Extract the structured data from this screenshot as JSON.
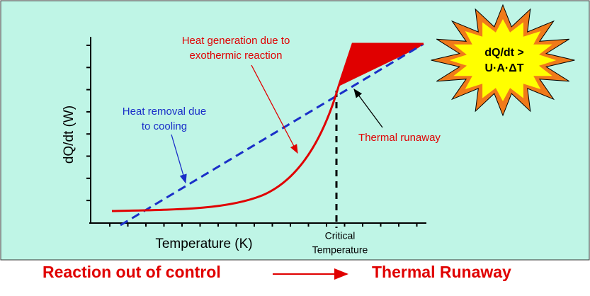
{
  "axes": {
    "y_label": "dQ/dt (W)",
    "x_label": "Temperature (K)",
    "critical_label": [
      "Critical",
      "Temperature"
    ]
  },
  "curves": {
    "generation_label": [
      "Heat generation due to",
      "exothermic reaction"
    ],
    "removal_label": [
      "Heat removal due",
      "to cooling"
    ],
    "runaway_label": "Thermal runaway"
  },
  "starburst": [
    "dQ/dt >",
    "U·A·ΔT"
  ],
  "footer": {
    "left": "Reaction out of control",
    "right": "Thermal Runaway"
  }
}
